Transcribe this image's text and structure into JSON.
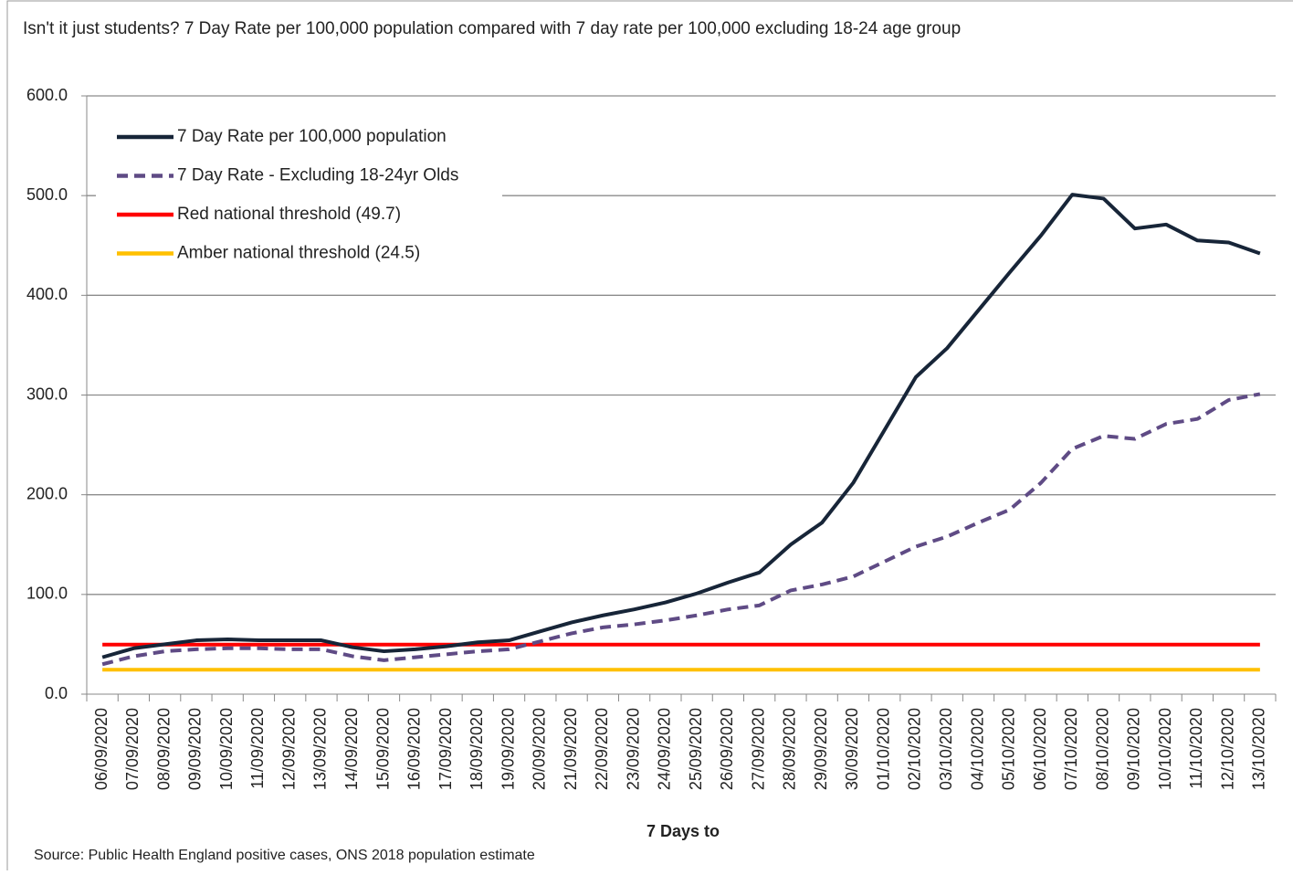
{
  "chart_data": {
    "type": "line",
    "title": "Isn't it just students? 7 Day Rate per 100,000 population compared with 7 day rate per 100,000 excluding 18-24 age group",
    "x_label": "7 Days to",
    "source": "Source: Public Health England positive cases, ONS 2018 population estimate",
    "categories": [
      "06/09/2020",
      "07/09/2020",
      "08/09/2020",
      "09/09/2020",
      "10/09/2020",
      "11/09/2020",
      "12/09/2020",
      "13/09/2020",
      "14/09/2020",
      "15/09/2020",
      "16/09/2020",
      "17/09/2020",
      "18/09/2020",
      "19/09/2020",
      "20/09/2020",
      "21/09/2020",
      "22/09/2020",
      "23/09/2020",
      "24/09/2020",
      "25/09/2020",
      "26/09/2020",
      "27/09/2020",
      "28/09/2020",
      "29/09/2020",
      "30/09/2020",
      "01/10/2020",
      "02/10/2020",
      "03/10/2020",
      "04/10/2020",
      "05/10/2020",
      "06/10/2020",
      "07/10/2020",
      "08/10/2020",
      "09/10/2020",
      "10/10/2020",
      "11/10/2020",
      "12/10/2020",
      "13/10/2020"
    ],
    "series": [
      {
        "name": "7 Day Rate per 100,000 population",
        "color": "#172538",
        "style": "solid",
        "values": [
          37,
          46,
          50,
          54,
          55,
          54,
          54,
          54,
          47,
          43,
          45,
          48,
          52,
          54,
          63,
          72,
          79,
          85,
          92,
          101,
          112,
          122,
          150,
          172,
          212,
          265,
          318,
          347,
          385,
          423,
          460,
          501,
          497,
          467,
          471,
          455,
          453,
          442
        ]
      },
      {
        "name": "7 Day Rate - Excluding 18-24yr Olds",
        "color": "#5f4b85",
        "style": "dashed",
        "values": [
          30,
          38,
          43,
          45,
          46,
          46,
          45,
          45,
          38,
          34,
          37,
          40,
          43,
          45,
          53,
          61,
          67,
          70,
          74,
          79,
          85,
          89,
          104,
          110,
          118,
          133,
          148,
          158,
          172,
          185,
          212,
          246,
          259,
          256,
          271,
          276,
          295,
          301
        ]
      },
      {
        "name": "Red national threshold (49.7)",
        "color": "#ff0000",
        "style": "solid",
        "values": [
          49.7,
          49.7,
          49.7,
          49.7,
          49.7,
          49.7,
          49.7,
          49.7,
          49.7,
          49.7,
          49.7,
          49.7,
          49.7,
          49.7,
          49.7,
          49.7,
          49.7,
          49.7,
          49.7,
          49.7,
          49.7,
          49.7,
          49.7,
          49.7,
          49.7,
          49.7,
          49.7,
          49.7,
          49.7,
          49.7,
          49.7,
          49.7,
          49.7,
          49.7,
          49.7,
          49.7,
          49.7,
          49.7
        ]
      },
      {
        "name": "Amber national threshold (24.5)",
        "color": "#ffc000",
        "style": "solid",
        "values": [
          24.5,
          24.5,
          24.5,
          24.5,
          24.5,
          24.5,
          24.5,
          24.5,
          24.5,
          24.5,
          24.5,
          24.5,
          24.5,
          24.5,
          24.5,
          24.5,
          24.5,
          24.5,
          24.5,
          24.5,
          24.5,
          24.5,
          24.5,
          24.5,
          24.5,
          24.5,
          24.5,
          24.5,
          24.5,
          24.5,
          24.5,
          24.5,
          24.5,
          24.5,
          24.5,
          24.5,
          24.5,
          24.5
        ]
      }
    ],
    "ylim": [
      0,
      600
    ],
    "yticks": [
      {
        "value": 0,
        "label": "0.0"
      },
      {
        "value": 100,
        "label": "100.0"
      },
      {
        "value": 200,
        "label": "200.0"
      },
      {
        "value": 300,
        "label": "300.0"
      },
      {
        "value": 400,
        "label": "400.0"
      },
      {
        "value": 500,
        "label": "500.0"
      },
      {
        "value": 600,
        "label": "600.0"
      }
    ],
    "grid": true,
    "legend": "upper-left"
  }
}
